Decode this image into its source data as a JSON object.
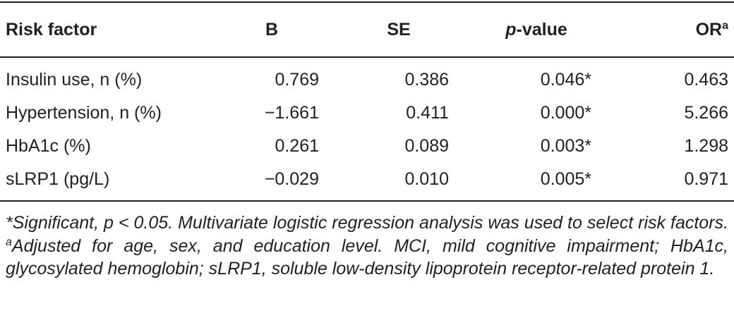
{
  "table": {
    "header": [
      "Risk factor",
      "B",
      "SE",
      {
        "italic": "p",
        "rest": "-value"
      },
      {
        "text": "OR",
        "sup": "a"
      }
    ],
    "rows": [
      [
        "Insulin use, n (%)",
        "0.769",
        "0.386",
        "0.046*",
        "0.463"
      ],
      [
        "Hypertension, n (%)",
        "−1.661",
        "0.411",
        "0.000*",
        "5.266"
      ],
      [
        "HbA1c (%)",
        "0.261",
        "0.089",
        "0.003*",
        "1.298"
      ],
      [
        "sLRP1 (pg/L)",
        "−0.029",
        "0.010",
        "0.005*",
        "0.971"
      ]
    ]
  },
  "footnote": {
    "part1": "*Significant, p < 0.05. Multivariate logistic regression analysis was used to select risk factors.",
    "sup": "a",
    "part2": "Adjusted for age, sex, and education level. MCI, mild cognitive impairment; HbA1c, glycosylated hemoglobin; sLRP1, soluble low-density lipoprotein receptor-related protein 1."
  }
}
